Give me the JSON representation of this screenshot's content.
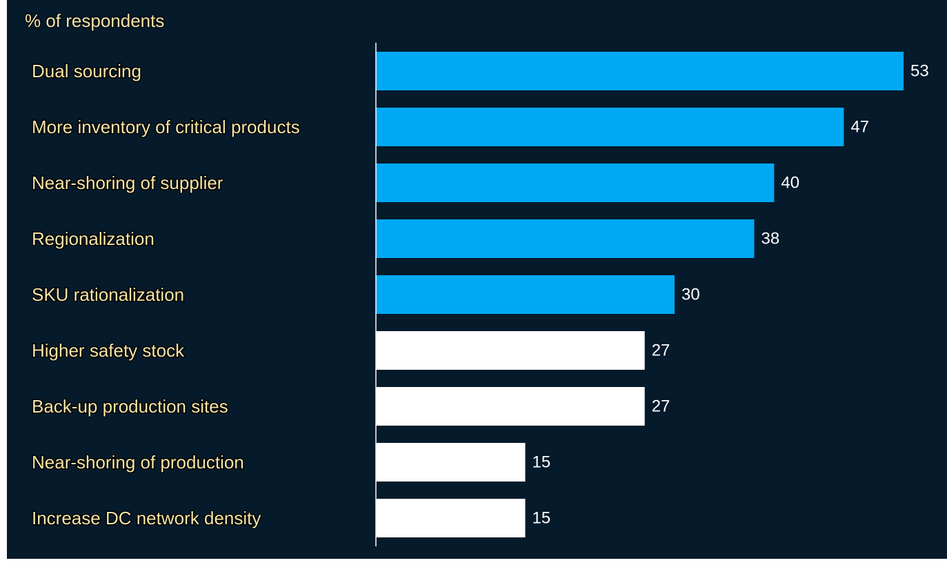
{
  "chart_data": {
    "type": "bar",
    "orientation": "horizontal",
    "subtitle": "% of respondents",
    "categories": [
      "Dual sourcing",
      "More inventory of critical products",
      "Near-shoring of supplier",
      "Regionalization",
      "SKU rationalization",
      "Higher safety stock",
      "Back-up production sites",
      "Near-shoring of production",
      "Increase DC network density"
    ],
    "values": [
      53,
      47,
      40,
      38,
      30,
      27,
      27,
      15,
      15
    ],
    "highlighted": [
      true,
      true,
      true,
      true,
      true,
      false,
      false,
      false,
      false
    ],
    "xlim": [
      0,
      53
    ],
    "grid": false,
    "legend": "none"
  },
  "colors": {
    "background": "#051a2b",
    "highlight_bar": "#00a9f4",
    "default_bar": "#ffffff",
    "label_text": "#f3e4a6",
    "value_text": "#ffffff",
    "axis_line": "#ffffff"
  }
}
